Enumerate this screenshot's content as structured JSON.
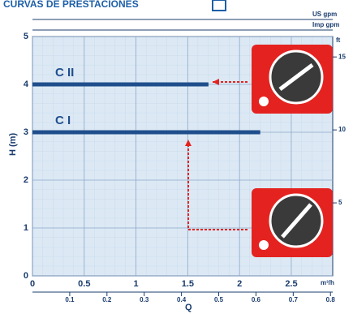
{
  "chart_data": {
    "type": "line",
    "title": "CURVAS DE PRESTACIONES",
    "y_label": "H (m)",
    "x_label": "m³/h",
    "x2_label": "Q",
    "y2_label": "ft",
    "top_labels": [
      "US gpm",
      "Imp gpm"
    ],
    "series": [
      {
        "name": "C II",
        "color": "#1f4e8c",
        "x": [
          0,
          1.7
        ],
        "values": [
          4,
          4
        ]
      },
      {
        "name": "C I",
        "color": "#1f4e8c",
        "x": [
          0,
          2.2
        ],
        "values": [
          3,
          3
        ]
      }
    ],
    "xlim": [
      0,
      2.9
    ],
    "xticks": [
      0,
      0.5,
      1,
      1.5,
      2,
      2.5
    ],
    "ylim": [
      0,
      5
    ],
    "yticks": [
      0,
      1,
      2,
      3,
      4,
      5
    ],
    "y2lim": [
      0,
      16.4
    ],
    "y2ticks": [
      5,
      10,
      15
    ],
    "x2lim": [
      0,
      0.806
    ],
    "x2ticks": [
      0.1,
      0.2,
      0.3,
      0.4,
      0.5,
      0.6,
      0.7,
      0.8
    ],
    "grid": true
  }
}
